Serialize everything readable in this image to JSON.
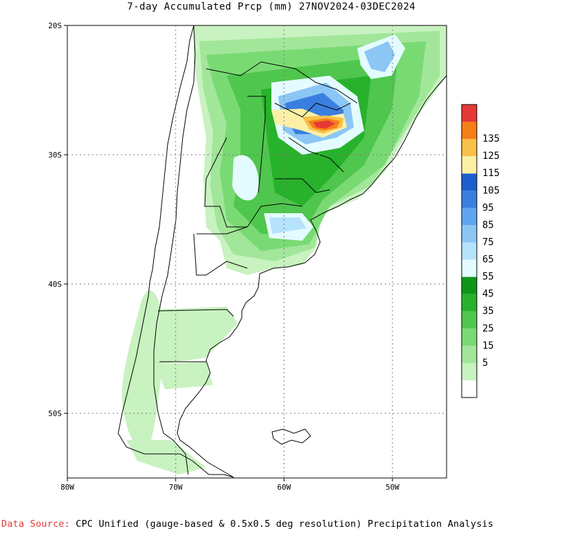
{
  "title": "7-day Accumulated Prcp (mm) 27NOV2024-03DEC2024",
  "map": {
    "lon_range": [
      -80,
      -45
    ],
    "lat_range": [
      -55,
      -20
    ],
    "lat_ticks": [
      {
        "value": -20,
        "label": "20S"
      },
      {
        "value": -30,
        "label": "30S"
      },
      {
        "value": -40,
        "label": "40S"
      },
      {
        "value": -50,
        "label": "50S"
      }
    ],
    "lon_ticks": [
      {
        "value": -80,
        "label": "80W"
      },
      {
        "value": -70,
        "label": "70W"
      },
      {
        "value": -60,
        "label": "60W"
      },
      {
        "value": -50,
        "label": "50W"
      }
    ],
    "grid": "dotted"
  },
  "legend": {
    "unit": "mm",
    "levels": [
      {
        "label": "",
        "color": "#ffffff"
      },
      {
        "label": "5",
        "color": "#c8f2c0"
      },
      {
        "label": "15",
        "color": "#a2e69a"
      },
      {
        "label": "25",
        "color": "#79da73"
      },
      {
        "label": "35",
        "color": "#4fc64d"
      },
      {
        "label": "45",
        "color": "#28b22c"
      },
      {
        "label": "55",
        "color": "#0f961a"
      },
      {
        "label": "65",
        "color": "#e4fbff"
      },
      {
        "label": "75",
        "color": "#b6e3fb"
      },
      {
        "label": "85",
        "color": "#8cc6f5"
      },
      {
        "label": "95",
        "color": "#5fa5ef"
      },
      {
        "label": "105",
        "color": "#3a7fe0"
      },
      {
        "label": "115",
        "color": "#1c5fcc"
      },
      {
        "label": "125",
        "color": "#fbf0a6"
      },
      {
        "label": "135",
        "color": "#f9c04a"
      },
      {
        "label": "",
        "color": "#f57f17"
      },
      {
        "label": "",
        "color": "#e53935"
      }
    ]
  },
  "source": {
    "label": "Data Source:",
    "text": "CPC Unified (gauge-based & 0.5x0.5 deg resolution) Precipitation Analysis"
  }
}
